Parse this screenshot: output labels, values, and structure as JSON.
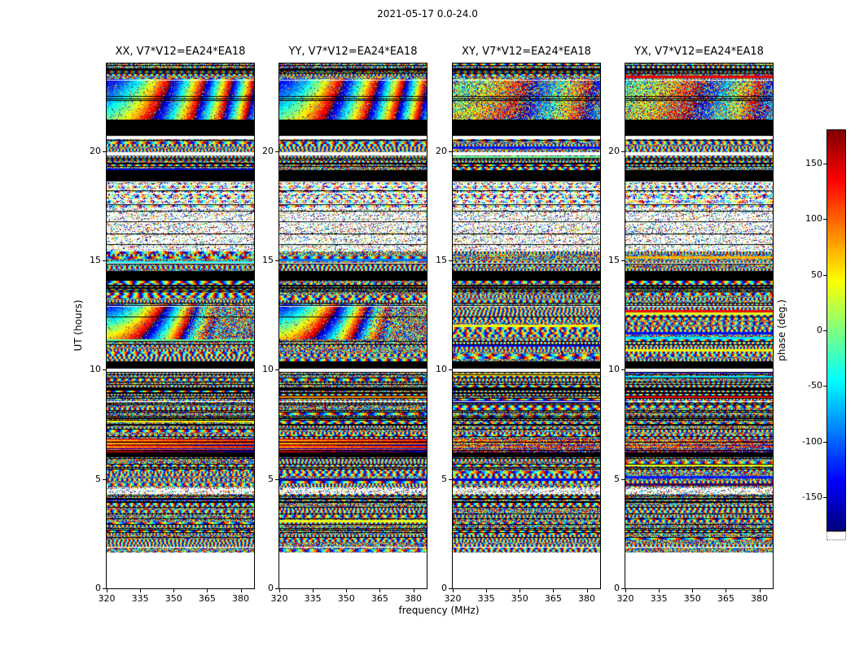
{
  "figure": {
    "suptitle": "2021-05-17 0.0-24.0",
    "xlabel": "frequency (MHz)",
    "ylabel": "UT (hours)",
    "colorbar_label": "phase (deg.)"
  },
  "panels": [
    {
      "id": "XX",
      "title": "XX, V7*V12=EA24*EA18"
    },
    {
      "id": "YY",
      "title": "YY, V7*V12=EA24*EA18"
    },
    {
      "id": "XY",
      "title": "XY, V7*V12=EA24*EA18"
    },
    {
      "id": "YX",
      "title": "YX, V7*V12=EA24*EA18"
    }
  ],
  "x_axis": {
    "min": 320,
    "max": 386,
    "ticks": [
      320,
      335,
      350,
      365,
      380
    ]
  },
  "y_axis": {
    "min": 0,
    "max": 24,
    "ticks": [
      0,
      5,
      10,
      15,
      20
    ]
  },
  "colorbar": {
    "min": -180,
    "max": 180,
    "ticks": [
      150,
      100,
      50,
      0,
      -50,
      -100,
      -150
    ],
    "colormap": "jet"
  },
  "chart_data": {
    "type": "heatmap",
    "title": "2021-05-17 0.0-24.0",
    "xlabel": "frequency (MHz)",
    "ylabel": "UT (hours)",
    "zlabel": "phase (deg.)",
    "x_range_mhz": [
      320,
      386
    ],
    "y_range_hours": [
      0,
      24
    ],
    "z_range_deg": [
      -180,
      180
    ],
    "colormap": "jet",
    "panels": [
      "XX, V7*V12=EA24*EA18",
      "YY, V7*V12=EA24*EA18",
      "XY, V7*V12=EA24*EA18",
      "YX, V7*V12=EA24*EA18"
    ],
    "description": "Visibility phase vs frequency and UT for baseline V7*V12 (EA24*EA18), four polarization products; random-looking fringe phase noise with horizontal scan structure, data gaps (white), flagged scans (black), and coherent rainbow fringe features in XX/YY.",
    "bands": [
      {
        "hours": [
          23.55,
          24.0
        ],
        "type": "noise_lines"
      },
      {
        "hours": [
          23.3,
          23.55
        ],
        "type": "noise"
      },
      {
        "hours": [
          21.45,
          23.3
        ],
        "type": "blob_top"
      },
      {
        "hours": [
          20.7,
          21.45
        ],
        "type": "black"
      },
      {
        "hours": [
          20.55,
          20.7
        ],
        "type": "white"
      },
      {
        "hours": [
          19.95,
          20.55
        ],
        "type": "noise"
      },
      {
        "hours": [
          19.8,
          19.95
        ],
        "type": "white"
      },
      {
        "hours": [
          19.1,
          19.8
        ],
        "type": "noise_lines"
      },
      {
        "hours": [
          18.6,
          19.1
        ],
        "type": "black"
      },
      {
        "hours": [
          17.4,
          18.6
        ],
        "type": "noise_rows"
      },
      {
        "hours": [
          15.4,
          17.4
        ],
        "type": "sparse"
      },
      {
        "hours": [
          14.5,
          15.4
        ],
        "type": "noise"
      },
      {
        "hours": [
          14.05,
          14.5
        ],
        "type": "black"
      },
      {
        "hours": [
          13.0,
          14.05
        ],
        "type": "noise_lines"
      },
      {
        "hours": [
          11.4,
          13.0
        ],
        "type": "blob_mid"
      },
      {
        "hours": [
          10.4,
          11.4
        ],
        "type": "noise"
      },
      {
        "hours": [
          10.05,
          10.4
        ],
        "type": "black"
      },
      {
        "hours": [
          9.9,
          10.05
        ],
        "type": "white"
      },
      {
        "hours": [
          6.85,
          9.9
        ],
        "type": "noise_lines"
      },
      {
        "hours": [
          6.2,
          6.85
        ],
        "type": "bright_band"
      },
      {
        "hours": [
          6.0,
          6.2
        ],
        "type": "black"
      },
      {
        "hours": [
          4.6,
          6.0
        ],
        "type": "noise"
      },
      {
        "hours": [
          4.3,
          4.6
        ],
        "type": "sparse"
      },
      {
        "hours": [
          2.5,
          4.3
        ],
        "type": "noise_lines"
      },
      {
        "hours": [
          1.65,
          2.5
        ],
        "type": "noise"
      },
      {
        "hours": [
          0.0,
          1.65
        ],
        "type": "white"
      }
    ]
  }
}
